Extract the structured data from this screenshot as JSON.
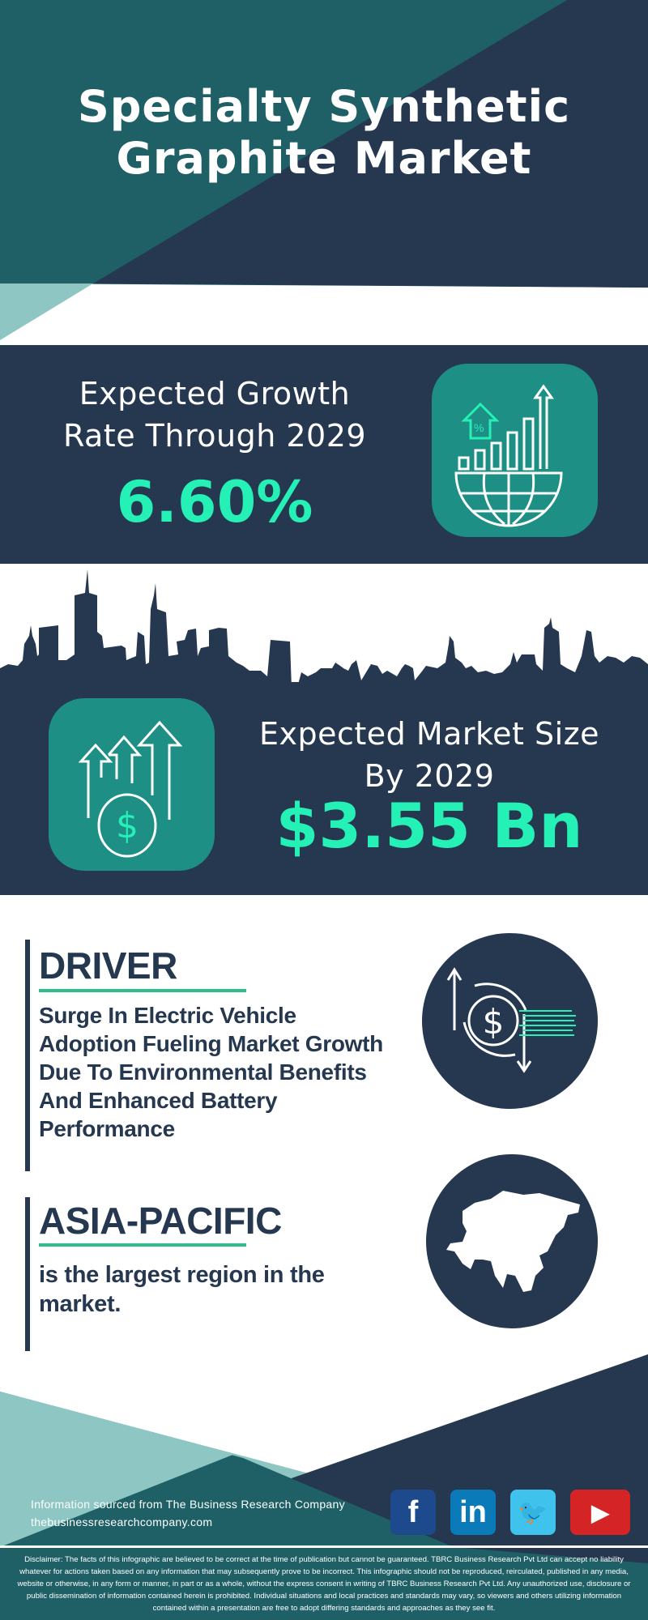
{
  "header": {
    "title_line1": "Specialty Synthetic",
    "title_line2": "Graphite Market"
  },
  "growth": {
    "label_line1": "Expected Growth",
    "label_line2": "Rate Through 2029",
    "value": "6.60%",
    "icon": "growth-globe-chart-icon"
  },
  "market_size": {
    "label_line1": "Expected Market Size",
    "label_line2": "By 2029",
    "value": "$3.55 Bn",
    "icon": "money-growth-arrows-icon"
  },
  "driver": {
    "heading": "DRIVER",
    "text": "Surge In Electric Vehicle Adoption Fueling Market Growth Due To Environmental Benefits And Enhanced Battery Performance",
    "icon": "dollar-exchange-icon"
  },
  "region": {
    "heading": "ASIA-PACIFIC",
    "text": "is the largest region in the market.",
    "icon": "asia-map-icon"
  },
  "footer": {
    "source": "Information sourced from The Business Research Company",
    "url": "thebusinessresearchcompany.com",
    "social": [
      {
        "name": "facebook",
        "glyph": "f",
        "color": "#1c4a8c"
      },
      {
        "name": "linkedin",
        "glyph": "in",
        "color": "#0a7ab8"
      },
      {
        "name": "twitter",
        "glyph": "🐦",
        "color": "#3fc3ec"
      },
      {
        "name": "youtube",
        "glyph": "▶",
        "color": "#d42425"
      }
    ],
    "disclaimer": "Disclaimer: The facts of this infographic are believed to be correct at the time of publication but cannot be guaranteed. TBRC Business Research Pvt Ltd can accept no liability whatever for actions taken based on any information that may subsequently prove to be incorrect. This infographic should not be reproduced, reirculated, published in any media, website or otherwise, in any form or manner, in part or as a whole, without the express consent in writing of TBRC Business Research Pvt Ltd. Any unauthorized use, disclosure or public dissemination of information contained herein is prohibited. Individual situations and local practices and standards may vary, so viewers and others utilizing information contained within a presentation are free to adopt differing standards and approaches as they see fit."
  },
  "colors": {
    "navy": "#253850",
    "teal": "#1f6066",
    "light_teal": "#8dc6c2",
    "icon_box": "#1d8f85",
    "accent_green": "#25f0b5"
  }
}
